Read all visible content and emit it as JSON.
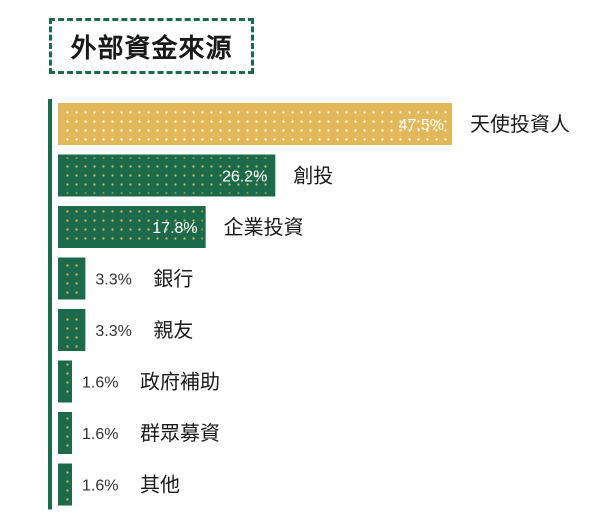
{
  "chart_data": {
    "type": "bar",
    "orientation": "horizontal",
    "title": "外部資金來源",
    "categories": [
      "天使投資人",
      "創投",
      "企業投資",
      "銀行",
      "親友",
      "政府補助",
      "群眾募資",
      "其他"
    ],
    "values": [
      47.5,
      26.2,
      17.8,
      3.3,
      3.3,
      1.6,
      1.6,
      1.6
    ],
    "value_labels": [
      "47.5%",
      "26.2%",
      "17.8%",
      "3.3%",
      "3.3%",
      "1.6%",
      "1.6%",
      "1.6%"
    ],
    "unit": "%",
    "xlim": [
      0,
      47.5
    ],
    "legend": "none",
    "grid": false
  },
  "colors": {
    "bar_default": "#1b6b4a",
    "bar_highlight": "#e3b85a",
    "dot_on_dark": "#e3b85a",
    "dot_on_highlight": "#ffffff",
    "axis": "#1b6b4a",
    "title_border": "#1b6b4a",
    "label_text": "#1a1a1a",
    "value_text_inside": "#ffffff",
    "value_text_outside": "#333333"
  }
}
